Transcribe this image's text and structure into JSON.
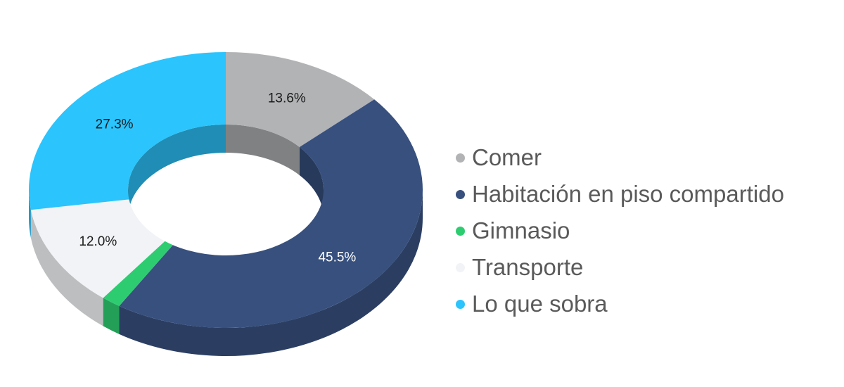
{
  "chart_data": {
    "type": "pie",
    "title": "",
    "legend_position": "right",
    "series": [
      {
        "name": "Comer",
        "value": 13.6,
        "label": "13.6%",
        "color": "#B2B3B5",
        "label_color": "#1a1a1a"
      },
      {
        "name": "Habitación en piso compartido",
        "value": 45.5,
        "label": "45.5%",
        "color": "#37507E",
        "label_color": "#ffffff"
      },
      {
        "name": "Gimnasio",
        "value": 1.6,
        "label": "",
        "color": "#2ECC71",
        "label_color": "#1a1a1a"
      },
      {
        "name": "Transporte",
        "value": 12.0,
        "label": "12.0%",
        "color": "#F1F3F6",
        "label_color": "#1a1a1a"
      },
      {
        "name": "Lo que sobra",
        "value": 27.3,
        "label": "27.3%",
        "color": "#2BC4FC",
        "label_color": "#1a1a1a"
      }
    ]
  }
}
